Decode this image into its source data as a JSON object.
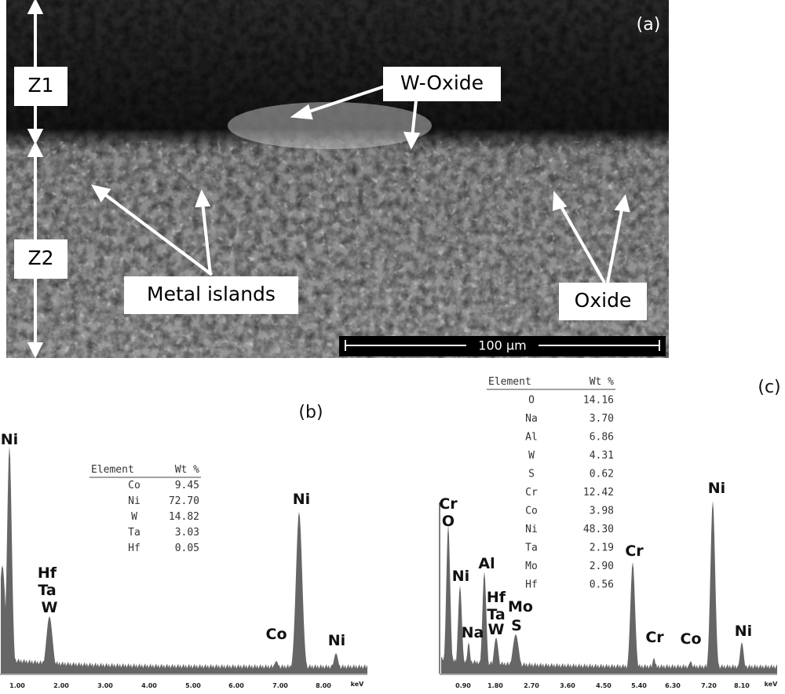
{
  "micrograph": {
    "panel": "(a)",
    "zones": [
      "Z1",
      "Z2"
    ],
    "labels": {
      "w_oxide": "W-Oxide",
      "metal_islands": "Metal islands",
      "oxide": "Oxide"
    },
    "scale_bar": "100 µm"
  },
  "spectrum_b": {
    "panel": "(b)",
    "table": {
      "header": [
        "Element",
        "Wt %"
      ],
      "rows": [
        [
          "Co",
          "9.45"
        ],
        [
          "Ni",
          "72.70"
        ],
        [
          "W",
          "14.82"
        ],
        [
          "Ta",
          "3.03"
        ],
        [
          "Hf",
          "0.05"
        ]
      ]
    },
    "peaks": [
      "Ni",
      "Hf",
      "Ta",
      "W",
      "Co",
      "Ni",
      "Ni"
    ],
    "x_ticks": [
      "1.00",
      "2.00",
      "3.00",
      "4.00",
      "5.00",
      "6.00",
      "7.00",
      "8.00"
    ],
    "unit": "keV"
  },
  "spectrum_c": {
    "panel": "(c)",
    "table": {
      "header": [
        "Element",
        "Wt %"
      ],
      "rows": [
        [
          "O",
          "14.16"
        ],
        [
          "Na",
          "3.70"
        ],
        [
          "Al",
          "6.86"
        ],
        [
          "W",
          "4.31"
        ],
        [
          "S",
          "0.62"
        ],
        [
          "Cr",
          "12.42"
        ],
        [
          "Co",
          "3.98"
        ],
        [
          "Ni",
          "48.30"
        ],
        [
          "Ta",
          "2.19"
        ],
        [
          "Mo",
          "2.90"
        ],
        [
          "Hf",
          "0.56"
        ]
      ]
    },
    "peaks": [
      "Cr",
      "O",
      "Ni",
      "Na",
      "Al",
      "Hf",
      "Ta",
      "W",
      "Mo",
      "S",
      "Cr",
      "Cr",
      "Co",
      "Ni",
      "Ni"
    ],
    "x_ticks": [
      "0.90",
      "1.80",
      "2.70",
      "3.60",
      "4.50",
      "5.40",
      "6.30",
      "7.20",
      "8.10"
    ],
    "unit": "keV"
  }
}
